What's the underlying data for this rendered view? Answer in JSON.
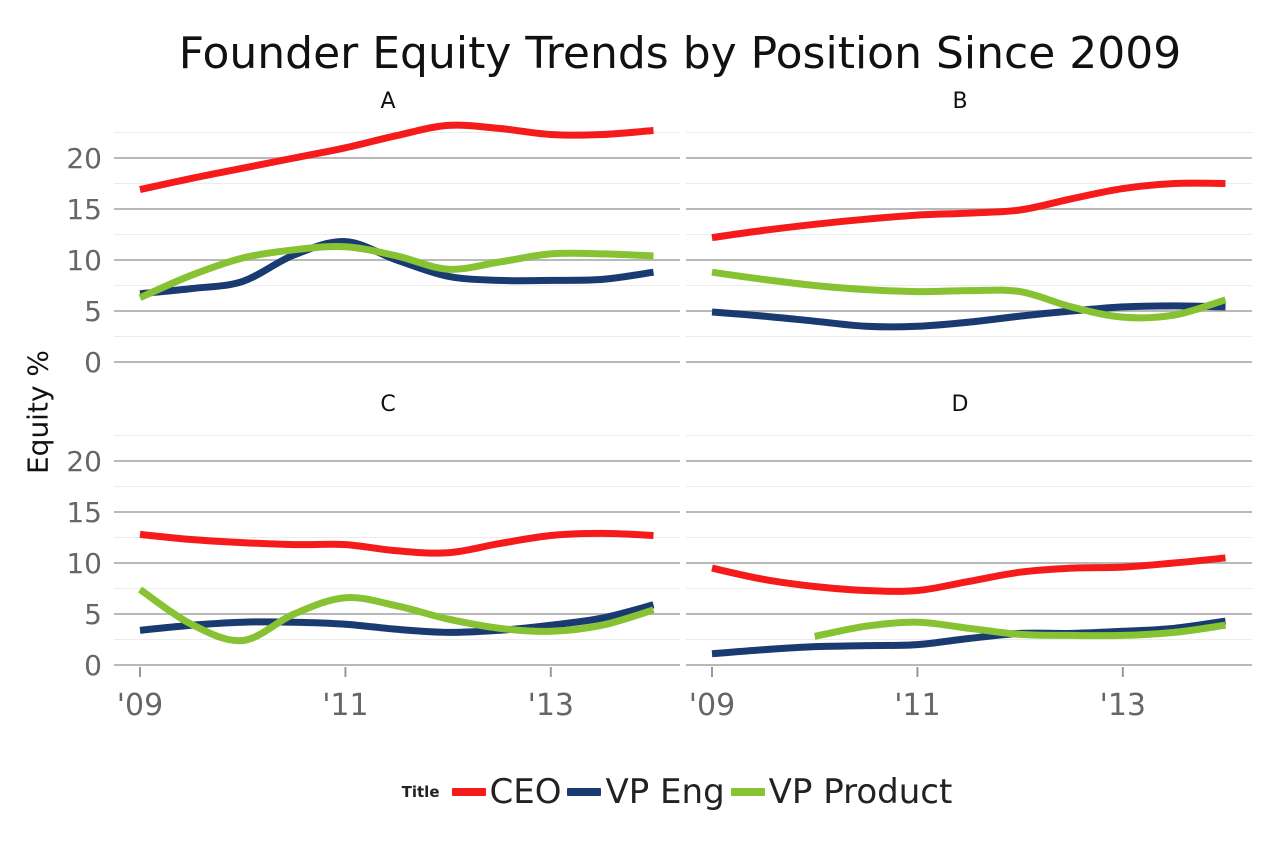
{
  "chart_data": {
    "type": "line",
    "title": "Founder Equity Trends by Position Since 2009",
    "ylabel": "Equity %",
    "xlabel": "",
    "xlim": [
      2009,
      2014
    ],
    "ylim": [
      0,
      22
    ],
    "x_ticks": [
      2009,
      2011,
      2013
    ],
    "x_tick_labels": [
      "'09",
      "'11",
      "'13"
    ],
    "y_ticks": [
      0,
      5,
      10,
      15,
      20
    ],
    "y_tick_labels": [
      "0",
      "5",
      "10",
      "15",
      "20"
    ],
    "grid": true,
    "legend": {
      "title": "Title",
      "placement": "bottom",
      "entries": [
        {
          "label": "CEO",
          "color": "#f51b1b"
        },
        {
          "label": "VP Eng",
          "color": "#1a3a72"
        },
        {
          "label": "VP Product",
          "color": "#86c232"
        }
      ]
    },
    "panels": [
      {
        "label": "A",
        "series": [
          {
            "name": "CEO",
            "color": "#f51b1b",
            "points": [
              [
                2009,
                16.9
              ],
              [
                2009.5,
                18.0
              ],
              [
                2010,
                19.0
              ],
              [
                2010.5,
                20.0
              ],
              [
                2011,
                21.0
              ],
              [
                2011.5,
                22.2
              ],
              [
                2012,
                23.2
              ],
              [
                2012.5,
                22.9
              ],
              [
                2013,
                22.3
              ],
              [
                2013.5,
                22.3
              ],
              [
                2014,
                22.7
              ]
            ]
          },
          {
            "name": "VP Eng",
            "color": "#1a3a72",
            "points": [
              [
                2009,
                6.7
              ],
              [
                2009.5,
                7.2
              ],
              [
                2010,
                7.9
              ],
              [
                2010.5,
                10.5
              ],
              [
                2011,
                11.8
              ],
              [
                2011.5,
                10.0
              ],
              [
                2012,
                8.4
              ],
              [
                2012.5,
                8.0
              ],
              [
                2013,
                8.0
              ],
              [
                2013.5,
                8.1
              ],
              [
                2014,
                8.8
              ]
            ]
          },
          {
            "name": "VP Product",
            "color": "#86c232",
            "points": [
              [
                2009,
                6.3
              ],
              [
                2009.5,
                8.5
              ],
              [
                2010,
                10.2
              ],
              [
                2010.5,
                11.0
              ],
              [
                2011,
                11.3
              ],
              [
                2011.5,
                10.4
              ],
              [
                2012,
                9.1
              ],
              [
                2012.5,
                9.8
              ],
              [
                2013,
                10.6
              ],
              [
                2013.5,
                10.6
              ],
              [
                2014,
                10.4
              ]
            ]
          }
        ]
      },
      {
        "label": "B",
        "series": [
          {
            "name": "CEO",
            "color": "#f51b1b",
            "points": [
              [
                2009,
                12.2
              ],
              [
                2009.5,
                12.9
              ],
              [
                2010,
                13.5
              ],
              [
                2010.5,
                14.0
              ],
              [
                2011,
                14.4
              ],
              [
                2011.5,
                14.6
              ],
              [
                2012,
                14.9
              ],
              [
                2012.5,
                16.0
              ],
              [
                2013,
                17.0
              ],
              [
                2013.5,
                17.5
              ],
              [
                2014,
                17.5
              ]
            ]
          },
          {
            "name": "VP Eng",
            "color": "#1a3a72",
            "points": [
              [
                2009,
                4.9
              ],
              [
                2009.5,
                4.5
              ],
              [
                2010,
                4.0
              ],
              [
                2010.5,
                3.5
              ],
              [
                2011,
                3.5
              ],
              [
                2011.5,
                3.9
              ],
              [
                2012,
                4.5
              ],
              [
                2012.5,
                5.0
              ],
              [
                2013,
                5.4
              ],
              [
                2013.5,
                5.5
              ],
              [
                2014,
                5.4
              ]
            ]
          },
          {
            "name": "VP Product",
            "color": "#86c232",
            "points": [
              [
                2009,
                8.8
              ],
              [
                2009.5,
                8.1
              ],
              [
                2010,
                7.5
              ],
              [
                2010.5,
                7.1
              ],
              [
                2011,
                6.9
              ],
              [
                2011.5,
                7.0
              ],
              [
                2012,
                6.9
              ],
              [
                2012.5,
                5.4
              ],
              [
                2013,
                4.4
              ],
              [
                2013.5,
                4.6
              ],
              [
                2014,
                6.1
              ]
            ]
          }
        ]
      },
      {
        "label": "C",
        "series": [
          {
            "name": "CEO",
            "color": "#f51b1b",
            "points": [
              [
                2009,
                12.8
              ],
              [
                2009.5,
                12.3
              ],
              [
                2010,
                12.0
              ],
              [
                2010.5,
                11.8
              ],
              [
                2011,
                11.8
              ],
              [
                2011.5,
                11.2
              ],
              [
                2012,
                11.0
              ],
              [
                2012.5,
                11.9
              ],
              [
                2013,
                12.7
              ],
              [
                2013.5,
                12.9
              ],
              [
                2014,
                12.7
              ]
            ]
          },
          {
            "name": "VP Eng",
            "color": "#1a3a72",
            "points": [
              [
                2009,
                3.4
              ],
              [
                2009.5,
                3.9
              ],
              [
                2010,
                4.2
              ],
              [
                2010.5,
                4.2
              ],
              [
                2011,
                4.0
              ],
              [
                2011.5,
                3.5
              ],
              [
                2012,
                3.2
              ],
              [
                2012.5,
                3.4
              ],
              [
                2013,
                3.9
              ],
              [
                2013.5,
                4.6
              ],
              [
                2014,
                5.9
              ]
            ]
          },
          {
            "name": "VP Product",
            "color": "#86c232",
            "points": [
              [
                2009,
                7.4
              ],
              [
                2009.5,
                4.0
              ],
              [
                2010,
                2.4
              ],
              [
                2010.5,
                5.0
              ],
              [
                2011,
                6.6
              ],
              [
                2011.5,
                5.8
              ],
              [
                2012,
                4.5
              ],
              [
                2012.5,
                3.6
              ],
              [
                2013,
                3.3
              ],
              [
                2013.5,
                3.9
              ],
              [
                2014,
                5.4
              ]
            ]
          }
        ]
      },
      {
        "label": "D",
        "series": [
          {
            "name": "CEO",
            "color": "#f51b1b",
            "points": [
              [
                2009,
                9.5
              ],
              [
                2009.5,
                8.4
              ],
              [
                2010,
                7.7
              ],
              [
                2010.5,
                7.3
              ],
              [
                2011,
                7.3
              ],
              [
                2011.5,
                8.2
              ],
              [
                2012,
                9.1
              ],
              [
                2012.5,
                9.5
              ],
              [
                2013,
                9.6
              ],
              [
                2013.5,
                10.0
              ],
              [
                2014,
                10.5
              ]
            ]
          },
          {
            "name": "VP Eng",
            "color": "#1a3a72",
            "points": [
              [
                2009,
                1.1
              ],
              [
                2009.5,
                1.5
              ],
              [
                2010,
                1.8
              ],
              [
                2010.5,
                1.9
              ],
              [
                2011,
                2.0
              ],
              [
                2011.5,
                2.6
              ],
              [
                2012,
                3.1
              ],
              [
                2012.5,
                3.1
              ],
              [
                2013,
                3.3
              ],
              [
                2013.5,
                3.6
              ],
              [
                2014,
                4.3
              ]
            ]
          },
          {
            "name": "VP Product",
            "color": "#86c232",
            "points": [
              [
                2010,
                2.8
              ],
              [
                2010.5,
                3.8
              ],
              [
                2011,
                4.2
              ],
              [
                2011.5,
                3.6
              ],
              [
                2012,
                3.0
              ],
              [
                2012.5,
                2.9
              ],
              [
                2013,
                2.9
              ],
              [
                2013.5,
                3.2
              ],
              [
                2014,
                3.9
              ]
            ]
          }
        ]
      }
    ]
  }
}
